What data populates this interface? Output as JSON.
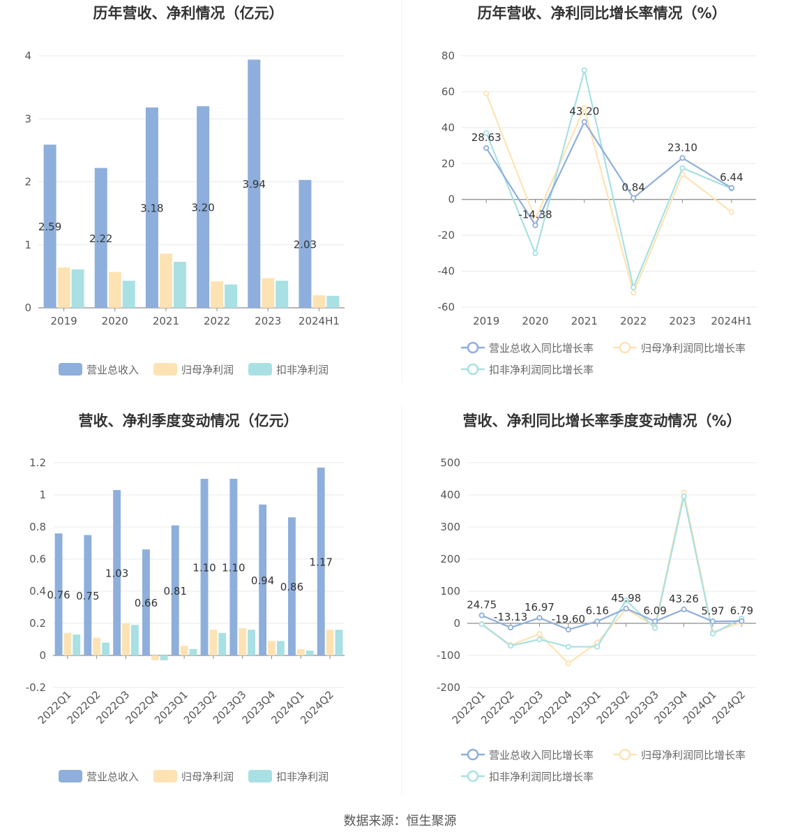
{
  "footer": "数据来源：恒生聚源",
  "colors": {
    "revenue": "#8eaedb",
    "net_profit": "#fde3b3",
    "deducted_profit": "#a8e0e3",
    "grid": "#e8e8e8",
    "axis": "#8a8a8a",
    "label": "#555555",
    "title": "#333333"
  },
  "chart_data": [
    {
      "type": "bar",
      "title": "历年营收、净利情况（亿元）",
      "categories": [
        "2019",
        "2020",
        "2021",
        "2022",
        "2023",
        "2024H1"
      ],
      "yticks": [
        "0",
        "1",
        "2",
        "3",
        "4"
      ],
      "ylim": [
        0,
        4
      ],
      "series": [
        {
          "name": "营业总收入",
          "values": [
            2.59,
            2.22,
            3.18,
            3.2,
            3.94,
            2.03
          ],
          "labels": [
            "2.59",
            "2.22",
            "3.18",
            "3.20",
            "3.94",
            "2.03"
          ]
        },
        {
          "name": "归母净利润",
          "values": [
            0.64,
            0.57,
            0.86,
            0.42,
            0.47,
            0.2
          ]
        },
        {
          "name": "扣非净利润",
          "values": [
            0.61,
            0.43,
            0.73,
            0.37,
            0.43,
            0.19
          ]
        }
      ],
      "legend": "bottom",
      "grid": true
    },
    {
      "type": "line",
      "title": "历年营收、净利同比增长率情况（%）",
      "categories": [
        "2019",
        "2020",
        "2021",
        "2022",
        "2023",
        "2024H1"
      ],
      "yticks": [
        "80",
        "60",
        "40",
        "20",
        "0",
        "-20",
        "-40",
        "-60"
      ],
      "ylim": [
        -60,
        80
      ],
      "series": [
        {
          "name": "营业总收入同比增长率",
          "values": [
            28.63,
            -14.38,
            43.2,
            0.84,
            23.1,
            6.44
          ],
          "labels": [
            "28.63",
            "-14.38",
            "43.20",
            "0.84",
            "23.10",
            "6.44"
          ]
        },
        {
          "name": "归母净利润同比增长率",
          "values": [
            59.0,
            -11.0,
            51.0,
            -52.0,
            14.0,
            -7.0
          ]
        },
        {
          "name": "扣非净利润同比增长率",
          "values": [
            37.0,
            -30.0,
            72.0,
            -49.0,
            17.5,
            6.0
          ]
        }
      ],
      "legend": "bottom",
      "grid": true
    },
    {
      "type": "bar",
      "title": "营收、净利季度变动情况（亿元）",
      "categories": [
        "2022Q1",
        "2022Q2",
        "2022Q3",
        "2022Q4",
        "2023Q1",
        "2023Q2",
        "2023Q3",
        "2023Q4",
        "2024Q1",
        "2024Q2"
      ],
      "yticks": [
        "1.2",
        "1",
        "0.8",
        "0.6",
        "0.4",
        "0.2",
        "0",
        "-0.2"
      ],
      "ylim": [
        -0.2,
        1.2
      ],
      "series": [
        {
          "name": "营业总收入",
          "values": [
            0.76,
            0.75,
            1.03,
            0.66,
            0.81,
            1.1,
            1.1,
            0.94,
            0.86,
            1.17
          ],
          "labels": [
            "0.76",
            "0.75",
            "1.03",
            "0.66",
            "0.81",
            "1.10",
            "1.10",
            "0.94",
            "0.86",
            "1.17"
          ]
        },
        {
          "name": "归母净利润",
          "values": [
            0.14,
            0.11,
            0.2,
            -0.03,
            0.06,
            0.16,
            0.17,
            0.09,
            0.04,
            0.16
          ]
        },
        {
          "name": "扣非净利润",
          "values": [
            0.13,
            0.08,
            0.19,
            -0.03,
            0.04,
            0.14,
            0.16,
            0.09,
            0.03,
            0.16
          ]
        }
      ],
      "legend": "bottom",
      "grid": true
    },
    {
      "type": "line",
      "title": "营收、净利同比增长率季度变动情况（%）",
      "categories": [
        "2022Q1",
        "2022Q2",
        "2022Q3",
        "2022Q4",
        "2023Q1",
        "2023Q2",
        "2023Q3",
        "2023Q4",
        "2024Q1",
        "2024Q2"
      ],
      "yticks": [
        "500",
        "400",
        "300",
        "200",
        "100",
        "0",
        "-100",
        "-200"
      ],
      "ylim": [
        -200,
        500
      ],
      "series": [
        {
          "name": "营业总收入同比增长率",
          "values": [
            24.75,
            -13.13,
            16.97,
            -19.6,
            6.16,
            45.98,
            6.09,
            43.26,
            5.97,
            6.79
          ],
          "labels": [
            "24.75",
            "-13.13",
            "16.97",
            "-19.60",
            "6.16",
            "45.98",
            "6.09",
            "43.26",
            "5.97",
            "6.79"
          ]
        },
        {
          "name": "归母净利润同比增长率",
          "values": [
            -2,
            -68,
            -33,
            -125,
            -60,
            45,
            -10,
            408,
            -28,
            3
          ]
        },
        {
          "name": "扣非净利润同比增长率",
          "values": [
            -3,
            -70,
            -50,
            -73,
            -73,
            72,
            -15,
            395,
            -32,
            15
          ]
        }
      ],
      "legend": "bottom",
      "grid": true
    }
  ]
}
